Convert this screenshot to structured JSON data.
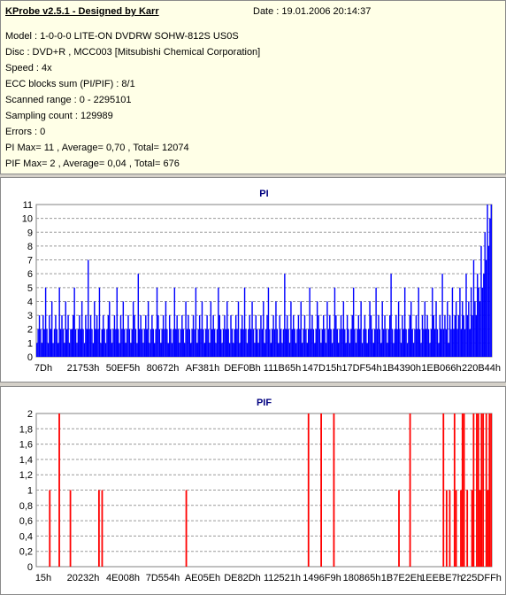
{
  "header": {
    "title": "KProbe v2.5.1 - Designed by Karr",
    "date": "Date : 19.01.2006 20:14:37",
    "lines": [
      "Model : 1-0-0-0 LITE-ON DVDRW SOHW-812S  US0S",
      "Disc : DVD+R , MCC003 [Mitsubishi Chemical Corporation]",
      "Speed : 4x",
      "ECC blocks sum (PI/PIF) : 8/1",
      "Scanned range : 0 - 2295101",
      "Sampling count : 129989",
      "Errors : 0",
      "PI Max= 11 , Average= 0,70 , Total= 12074",
      "PIF Max= 2 , Average= 0,04 , Total= 676"
    ]
  },
  "chart_data": [
    {
      "type": "bar",
      "title": "PI",
      "color": "#0000ff",
      "ylim": [
        0,
        11
      ],
      "yticks": [
        "0",
        "1",
        "2",
        "3",
        "4",
        "5",
        "6",
        "7",
        "8",
        "9",
        "10",
        "11"
      ],
      "xticks": [
        "7Dh",
        "21753h",
        "50EF5h",
        "80672h",
        "AF381h",
        "DEF0Bh",
        "111B65h",
        "147D15h",
        "17DF54h",
        "1B4390h",
        "1EB066h",
        "220B44h"
      ],
      "grid": "horizontal dashed",
      "values": [
        1,
        2,
        3,
        2,
        1,
        3,
        2,
        5,
        2,
        1,
        3,
        2,
        4,
        1,
        2,
        3,
        2,
        1,
        5,
        2,
        3,
        2,
        1,
        4,
        2,
        3,
        1,
        2,
        2,
        3,
        5,
        2,
        1,
        2,
        3,
        2,
        4,
        2,
        1,
        3,
        2,
        7,
        2,
        3,
        2,
        1,
        4,
        2,
        3,
        2,
        5,
        1,
        2,
        3,
        2,
        1,
        2,
        3,
        4,
        2,
        1,
        2,
        3,
        2,
        5,
        2,
        1,
        3,
        2,
        4,
        2,
        1,
        2,
        3,
        2,
        1,
        2,
        4,
        3,
        2,
        1,
        6,
        2,
        3,
        2,
        1,
        2,
        3,
        2,
        4,
        1,
        2,
        3,
        2,
        1,
        2,
        5,
        3,
        2,
        1,
        2,
        3,
        2,
        4,
        2,
        1,
        3,
        2,
        1,
        2,
        5,
        2,
        3,
        2,
        1,
        2,
        3,
        2,
        1,
        4,
        2,
        3,
        2,
        1,
        2,
        3,
        2,
        5,
        1,
        2,
        3,
        2,
        4,
        2,
        1,
        2,
        3,
        2,
        1,
        4,
        2,
        3,
        2,
        1,
        2,
        5,
        3,
        2,
        1,
        2,
        3,
        2,
        4,
        2,
        1,
        3,
        2,
        1,
        2,
        3,
        2,
        4,
        1,
        2,
        3,
        2,
        5,
        2,
        1,
        2,
        3,
        2,
        4,
        2,
        1,
        3,
        2,
        1,
        2,
        3,
        2,
        4,
        1,
        2,
        3,
        5,
        2,
        1,
        2,
        3,
        2,
        4,
        2,
        1,
        3,
        2,
        1,
        2,
        6,
        2,
        3,
        2,
        1,
        4,
        2,
        3,
        2,
        1,
        2,
        3,
        2,
        4,
        1,
        2,
        3,
        2,
        1,
        2,
        5,
        2,
        3,
        2,
        1,
        2,
        4,
        3,
        2,
        1,
        2,
        3,
        2,
        1,
        4,
        2,
        3,
        2,
        1,
        2,
        5,
        3,
        2,
        1,
        2,
        3,
        2,
        4,
        2,
        1,
        3,
        2,
        1,
        2,
        3,
        5,
        2,
        1,
        2,
        3,
        2,
        4,
        1,
        2,
        3,
        2,
        1,
        2,
        4,
        3,
        2,
        1,
        2,
        5,
        2,
        3,
        2,
        1,
        4,
        2,
        3,
        2,
        1,
        2,
        3,
        6,
        2,
        1,
        2,
        3,
        2,
        4,
        2,
        1,
        3,
        2,
        5,
        2,
        1,
        2,
        3,
        4,
        2,
        1,
        2,
        3,
        2,
        5,
        2,
        1,
        3,
        2,
        4,
        2,
        3,
        2,
        1,
        2,
        5,
        3,
        2,
        4,
        2,
        1,
        3,
        2,
        6,
        2,
        3,
        2,
        4,
        1,
        3,
        2,
        5,
        2,
        3,
        4,
        2,
        3,
        5,
        2,
        4,
        3,
        2,
        6,
        3,
        4,
        2,
        5,
        3,
        7,
        4,
        3,
        6,
        5,
        4,
        8,
        5,
        6,
        9,
        7,
        11,
        8,
        10,
        11
      ]
    },
    {
      "type": "bar",
      "title": "PIF",
      "color": "#ff0000",
      "ylim": [
        0,
        2
      ],
      "yticks": [
        "0",
        "0,2",
        "0,4",
        "0,6",
        "0,8",
        "1",
        "1,2",
        "1,4",
        "1,6",
        "1,8",
        "2"
      ],
      "xticks": [
        "15h",
        "20232h",
        "4E008h",
        "7D554h",
        "AE05Eh",
        "DE82Dh",
        "112521h",
        "1496F9h",
        "180865h",
        "1B7E2Eh",
        "1EEBE7h",
        "225DFFh"
      ],
      "grid": "horizontal dashed",
      "values": [
        0,
        0,
        0,
        0,
        0,
        0,
        0,
        0,
        1,
        0,
        0,
        0,
        0,
        0,
        2,
        0,
        0,
        0,
        0,
        0,
        0,
        1,
        0,
        0,
        0,
        0,
        0,
        0,
        0,
        0,
        0,
        0,
        0,
        0,
        0,
        0,
        0,
        0,
        0,
        1,
        0,
        1,
        0,
        0,
        0,
        0,
        0,
        0,
        0,
        0,
        0,
        0,
        0,
        0,
        0,
        0,
        0,
        0,
        0,
        0,
        0,
        0,
        0,
        0,
        0,
        0,
        0,
        0,
        0,
        0,
        0,
        0,
        0,
        0,
        0,
        0,
        0,
        0,
        0,
        0,
        0,
        0,
        0,
        0,
        0,
        0,
        0,
        0,
        0,
        0,
        0,
        0,
        0,
        0,
        1,
        0,
        0,
        0,
        0,
        0,
        0,
        0,
        0,
        0,
        0,
        0,
        0,
        0,
        0,
        0,
        0,
        0,
        0,
        0,
        0,
        0,
        0,
        0,
        0,
        0,
        0,
        0,
        0,
        0,
        0,
        0,
        0,
        0,
        0,
        0,
        0,
        0,
        0,
        0,
        0,
        0,
        0,
        0,
        0,
        0,
        0,
        0,
        0,
        0,
        0,
        0,
        0,
        0,
        0,
        0,
        0,
        0,
        0,
        0,
        0,
        0,
        0,
        0,
        0,
        0,
        0,
        0,
        0,
        0,
        0,
        0,
        0,
        0,
        0,
        0,
        0,
        2,
        0,
        0,
        0,
        0,
        0,
        0,
        0,
        2,
        0,
        0,
        0,
        0,
        0,
        0,
        0,
        2,
        0,
        0,
        0,
        0,
        0,
        0,
        0,
        0,
        0,
        0,
        0,
        0,
        0,
        0,
        0,
        0,
        0,
        0,
        0,
        0,
        0,
        0,
        0,
        0,
        0,
        0,
        0,
        0,
        0,
        0,
        0,
        0,
        0,
        0,
        0,
        0,
        0,
        0,
        0,
        0,
        1,
        0,
        0,
        0,
        0,
        0,
        0,
        2,
        0,
        0,
        0,
        0,
        0,
        0,
        0,
        0,
        0,
        0,
        0,
        0,
        0,
        0,
        0,
        0,
        0,
        0,
        0,
        0,
        2,
        0,
        1,
        0,
        1,
        0,
        0,
        2,
        1,
        0,
        0,
        1,
        2,
        2,
        0,
        1,
        0,
        0,
        1,
        2,
        0,
        2,
        2,
        1,
        2,
        2,
        0,
        2,
        1,
        2,
        2
      ]
    }
  ]
}
